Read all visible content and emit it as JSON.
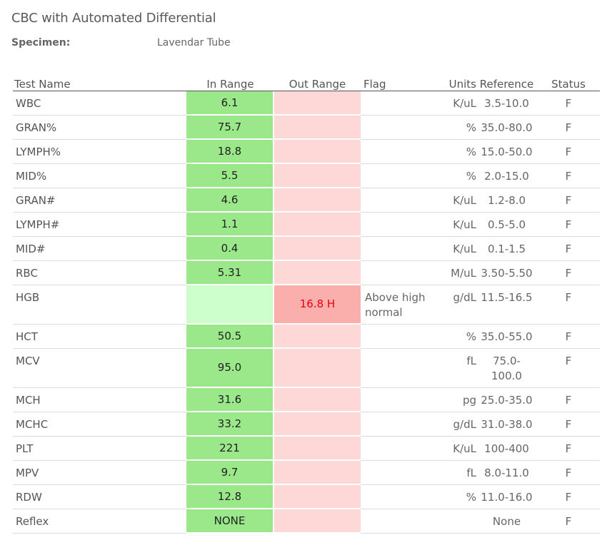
{
  "title": "CBC with Automated Differential",
  "specimen": {
    "label": "Specimen:",
    "value": "Lavendar Tube"
  },
  "columns": {
    "test_name": "Test Name",
    "in_range": "In Range",
    "out_range": "Out Range",
    "flag": "Flag",
    "units": "Units",
    "reference": "Reference",
    "status": "Status"
  },
  "colors": {
    "in_range_fill": "#9be88b",
    "in_range_empty_fill": "#ccffcc",
    "out_range_fill": "#fdd8d6",
    "out_range_flagged_fill": "#fbafad",
    "out_range_text": "#e8000b"
  },
  "rows": [
    {
      "name": "WBC",
      "in_range": "6.1",
      "out_range": "",
      "flag": "",
      "units": "K/uL",
      "reference": "3.5-10.0",
      "status": "F"
    },
    {
      "name": "GRAN%",
      "in_range": "75.7",
      "out_range": "",
      "flag": "",
      "units": "%",
      "reference": "35.0-80.0",
      "status": "F"
    },
    {
      "name": "LYMPH%",
      "in_range": "18.8",
      "out_range": "",
      "flag": "",
      "units": "%",
      "reference": "15.0-50.0",
      "status": "F"
    },
    {
      "name": "MID%",
      "in_range": "5.5",
      "out_range": "",
      "flag": "",
      "units": "%",
      "reference": "2.0-15.0",
      "status": "F"
    },
    {
      "name": "GRAN#",
      "in_range": "4.6",
      "out_range": "",
      "flag": "",
      "units": "K/uL",
      "reference": "1.2-8.0",
      "status": "F"
    },
    {
      "name": "LYMPH#",
      "in_range": "1.1",
      "out_range": "",
      "flag": "",
      "units": "K/uL",
      "reference": "0.5-5.0",
      "status": "F"
    },
    {
      "name": "MID#",
      "in_range": "0.4",
      "out_range": "",
      "flag": "",
      "units": "K/uL",
      "reference": "0.1-1.5",
      "status": "F"
    },
    {
      "name": "RBC",
      "in_range": "5.31",
      "out_range": "",
      "flag": "",
      "units": "M/uL",
      "reference": "3.50-5.50",
      "status": "F"
    },
    {
      "name": "HGB",
      "in_range": "",
      "out_range": "16.8 H",
      "flag": "Above high normal",
      "units": "g/dL",
      "reference": "11.5-16.5",
      "status": "F"
    },
    {
      "name": "HCT",
      "in_range": "50.5",
      "out_range": "",
      "flag": "",
      "units": "%",
      "reference": "35.0-55.0",
      "status": "F"
    },
    {
      "name": "MCV",
      "in_range": "95.0",
      "out_range": "",
      "flag": "",
      "units": "fL",
      "reference": "75.0-100.0",
      "status": "F"
    },
    {
      "name": "MCH",
      "in_range": "31.6",
      "out_range": "",
      "flag": "",
      "units": "pg",
      "reference": "25.0-35.0",
      "status": "F"
    },
    {
      "name": "MCHC",
      "in_range": "33.2",
      "out_range": "",
      "flag": "",
      "units": "g/dL",
      "reference": "31.0-38.0",
      "status": "F"
    },
    {
      "name": "PLT",
      "in_range": "221",
      "out_range": "",
      "flag": "",
      "units": "K/uL",
      "reference": "100-400",
      "status": "F"
    },
    {
      "name": "MPV",
      "in_range": "9.7",
      "out_range": "",
      "flag": "",
      "units": "fL",
      "reference": "8.0-11.0",
      "status": "F"
    },
    {
      "name": "RDW",
      "in_range": "12.8",
      "out_range": "",
      "flag": "",
      "units": "%",
      "reference": "11.0-16.0",
      "status": "F"
    },
    {
      "name": "Reflex",
      "in_range": "NONE",
      "out_range": "",
      "flag": "",
      "units": "",
      "reference": "None",
      "status": "F"
    }
  ]
}
